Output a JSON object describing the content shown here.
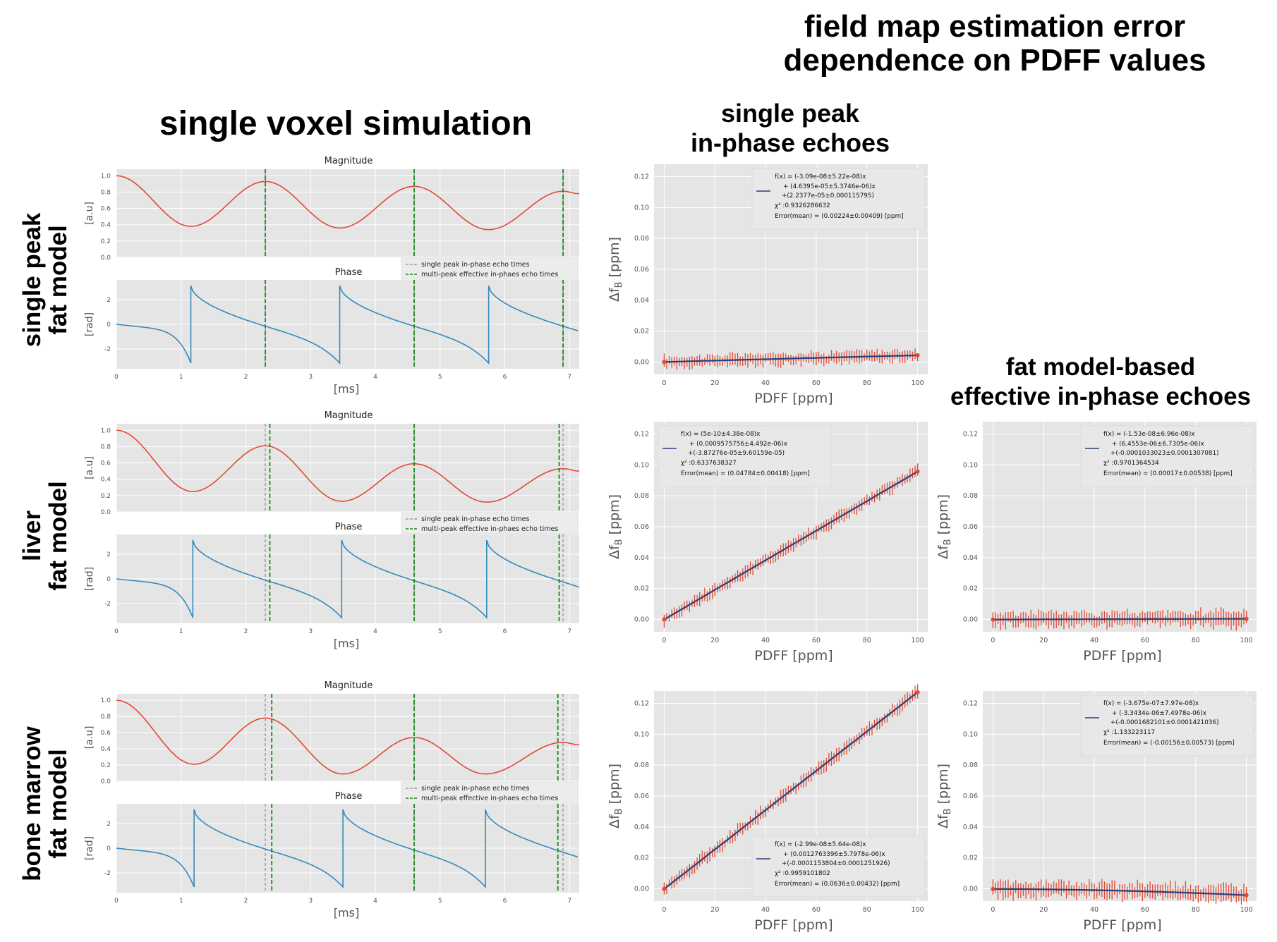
{
  "titles": {
    "main_line1": "field map estimation error",
    "main_line2": "dependence on PDFF values",
    "left": "single voxel simulation",
    "col_single_peak_line1": "single peak",
    "col_single_peak_line2": "in-phase echoes",
    "col_fat_model_line1": "fat model-based",
    "col_fat_model_line2": "effective in-phase echoes"
  },
  "row_labels": [
    {
      "line1": "single peak",
      "line2": "fat model"
    },
    {
      "line1": "liver",
      "line2": "fat model"
    },
    {
      "line1": "bone marrow",
      "line2": "fat model"
    }
  ],
  "colors": {
    "magnitude": "#E24A33",
    "phase": "#348ABD",
    "fit_line": "#2a3f7a",
    "errorbar": "#E24A33",
    "panel_bg": "#E5E5E5",
    "multi_peak_line": "#1a8a1a",
    "single_peak_line": "#888888"
  },
  "chart_data": [
    {
      "type": "line",
      "id": "sim-single-peak-magnitude",
      "title": "Magnitude",
      "xlabel": "",
      "ylabel": "[a.u]",
      "xlim": [
        0,
        7.15
      ],
      "ylim": [
        0,
        1.08
      ],
      "yticks": [
        "0.0",
        "0.2",
        "0.4",
        "0.6",
        "0.8",
        "1.0"
      ],
      "series": [
        {
          "name": "Magnitude",
          "minima": [
            0.38,
            0.36,
            0.34
          ],
          "maxima": [
            0.93,
            0.87,
            0.81
          ]
        }
      ],
      "legend": [
        "single peak in-phase echo times",
        "multi-peak effective in-phaes echo times"
      ],
      "single_peak_echo_times": [
        2.3,
        4.6,
        6.9
      ],
      "multi_peak_echo_times": [
        2.3,
        4.6,
        6.9
      ]
    },
    {
      "type": "line",
      "id": "sim-single-peak-phase",
      "title": "Phase",
      "xlabel": "[ms]",
      "ylabel": "[rad]",
      "xlim": [
        0,
        7.15
      ],
      "ylim": [
        -3.6,
        3.6
      ],
      "xticks": [
        "0",
        "1",
        "2",
        "3",
        "4",
        "5",
        "6",
        "7"
      ],
      "yticks": [
        "-2",
        "0",
        "2"
      ],
      "series": [
        {
          "name": "Phase",
          "wraps_at": [
            1.15,
            3.45,
            5.75
          ]
        }
      ]
    },
    {
      "type": "line",
      "id": "sim-liver-magnitude",
      "title": "Magnitude",
      "xlabel": "",
      "ylabel": "[a.u]",
      "xlim": [
        0,
        7.15
      ],
      "ylim": [
        0,
        1.08
      ],
      "yticks": [
        "0.0",
        "0.2",
        "0.4",
        "0.6",
        "0.8",
        "1.0"
      ],
      "series": [
        {
          "name": "Magnitude",
          "minima": [
            0.25,
            0.13,
            0.12
          ],
          "maxima": [
            0.81,
            0.59,
            0.53
          ]
        }
      ],
      "legend": [
        "single peak in-phase echo times",
        "multi-peak effective in-phaes echo times"
      ],
      "single_peak_echo_times": [
        2.3,
        4.6,
        6.9
      ],
      "multi_peak_echo_times": [
        2.37,
        4.6,
        6.84
      ]
    },
    {
      "type": "line",
      "id": "sim-liver-phase",
      "title": "Phase",
      "xlabel": "[ms]",
      "ylabel": "[rad]",
      "xlim": [
        0,
        7.15
      ],
      "ylim": [
        -3.6,
        3.6
      ],
      "xticks": [
        "0",
        "1",
        "2",
        "3",
        "4",
        "5",
        "6",
        "7"
      ],
      "yticks": [
        "-2",
        "0",
        "2"
      ],
      "series": [
        {
          "name": "Phase",
          "wraps_at": [
            1.18,
            3.48,
            5.72
          ]
        }
      ]
    },
    {
      "type": "line",
      "id": "sim-bone-marrow-magnitude",
      "title": "Magnitude",
      "xlabel": "",
      "ylabel": "[a.u]",
      "xlim": [
        0,
        7.15
      ],
      "ylim": [
        0,
        1.08
      ],
      "yticks": [
        "0.0",
        "0.2",
        "0.4",
        "0.6",
        "0.8",
        "1.0"
      ],
      "series": [
        {
          "name": "Magnitude",
          "minima": [
            0.21,
            0.09,
            0.09
          ],
          "maxima": [
            0.78,
            0.54,
            0.48
          ]
        }
      ],
      "legend": [
        "single peak in-phase echo times",
        "multi-peak effective in-phaes echo times"
      ],
      "single_peak_echo_times": [
        2.3,
        4.6,
        6.9
      ],
      "multi_peak_echo_times": [
        2.4,
        4.6,
        6.82
      ]
    },
    {
      "type": "line",
      "id": "sim-bone-marrow-phase",
      "title": "Phase",
      "xlabel": "[ms]",
      "ylabel": "[rad]",
      "xlim": [
        0,
        7.15
      ],
      "ylim": [
        -3.6,
        3.6
      ],
      "xticks": [
        "0",
        "1",
        "2",
        "3",
        "4",
        "5",
        "6",
        "7"
      ],
      "yticks": [
        "-2",
        "0",
        "2"
      ],
      "series": [
        {
          "name": "Phase",
          "wraps_at": [
            1.2,
            3.5,
            5.7
          ]
        }
      ]
    },
    {
      "type": "scatter",
      "id": "fit-single-peak-in-phase-single-peak-model",
      "xlabel": "PDFF [ppm]",
      "ylabel": "Δf_B [ppm]",
      "xlim": [
        -4,
        104
      ],
      "ylim": [
        -0.008,
        0.128
      ],
      "xticks": [
        "0",
        "20",
        "40",
        "60",
        "80",
        "100"
      ],
      "yticks": [
        "0.00",
        "0.02",
        "0.04",
        "0.06",
        "0.08",
        "0.10",
        "0.12"
      ],
      "fit": {
        "a": -3.09e-08,
        "b": 4.6395e-05,
        "c": 2.2377e-05
      },
      "errorbar_half_width": 0.0041,
      "legend_position": "top-right",
      "legend_text": [
        "f(x) = (-3.09e-08±5.22e-08)x",
        "+ (4.6395e-05±5.3746e-06)x",
        "+(2.2377e-05±0.000115795)",
        ":0.9326286632",
        "Error(mean) = (0.00224±0.00409) [ppm]"
      ]
    },
    {
      "type": "scatter",
      "id": "fit-single-peak-in-phase-liver-model",
      "xlabel": "PDFF [ppm]",
      "ylabel": "Δf_B [ppm]",
      "xlim": [
        -4,
        104
      ],
      "ylim": [
        -0.008,
        0.128
      ],
      "xticks": [
        "0",
        "20",
        "40",
        "60",
        "80",
        "100"
      ],
      "yticks": [
        "0.00",
        "0.02",
        "0.04",
        "0.06",
        "0.08",
        "0.10",
        "0.12"
      ],
      "fit": {
        "a": 5e-10,
        "b": 0.0009575756,
        "c": -3.87276e-05
      },
      "errorbar_half_width": 0.0042,
      "legend_position": "top-left",
      "legend_text": [
        "f(x) = (5e-10±4.38e-08)x",
        "+ (0.0009575756±4.492e-06)x",
        "+(-3.87276e-05±9.60159e-05)",
        ":0.6337638327",
        "Error(mean) = (0.04784±0.00418) [ppm]"
      ]
    },
    {
      "type": "scatter",
      "id": "fit-effective-in-phase-liver-model",
      "xlabel": "PDFF [ppm]",
      "ylabel": "Δf_B [ppm]",
      "xlim": [
        -4,
        104
      ],
      "ylim": [
        -0.008,
        0.128
      ],
      "xticks": [
        "0",
        "20",
        "40",
        "60",
        "80",
        "100"
      ],
      "yticks": [
        "0.00",
        "0.02",
        "0.04",
        "0.06",
        "0.08",
        "0.10",
        "0.12"
      ],
      "fit": {
        "a": -1.53e-08,
        "b": 6.4553e-06,
        "c": -0.0001033023
      },
      "errorbar_half_width": 0.0054,
      "legend_position": "top-right",
      "legend_text": [
        "f(x) = (-1.53e-08±6.96e-08)x",
        "+ (6.4553e-06±6.7305e-06)x",
        "+(-0.0001033023±0.0001307081)",
        ":0.9701364534",
        "Error(mean) = (0.00017±0.00538) [ppm]"
      ]
    },
    {
      "type": "scatter",
      "id": "fit-single-peak-in-phase-bone-marrow-model",
      "xlabel": "PDFF [ppm]",
      "ylabel": "Δf_B [ppm]",
      "xlim": [
        -4,
        104
      ],
      "ylim": [
        -0.008,
        0.128
      ],
      "xticks": [
        "0",
        "20",
        "40",
        "60",
        "80",
        "100"
      ],
      "yticks": [
        "0.00",
        "0.02",
        "0.04",
        "0.06",
        "0.08",
        "0.10",
        "0.12"
      ],
      "fit": {
        "a": -2.99e-08,
        "b": 0.0012763396,
        "c": -0.0001153804
      },
      "errorbar_half_width": 0.0043,
      "legend_position": "bottom-right",
      "legend_text": [
        "f(x) = (-2.99e-08±5.64e-08)x",
        "+ (0.0012763396±5.7978e-06)x",
        "+(-0.0001153804±0.0001251926)",
        ":0.9959101802",
        "Error(mean) = (0.0636±0.00432) [ppm]"
      ]
    },
    {
      "type": "scatter",
      "id": "fit-effective-in-phase-bone-marrow-model",
      "xlabel": "PDFF [ppm]",
      "ylabel": "Δf_B [ppm]",
      "xlim": [
        -4,
        104
      ],
      "ylim": [
        -0.008,
        0.128
      ],
      "xticks": [
        "0",
        "20",
        "40",
        "60",
        "80",
        "100"
      ],
      "yticks": [
        "0.00",
        "0.02",
        "0.04",
        "0.06",
        "0.08",
        "0.10",
        "0.12"
      ],
      "fit": {
        "a": -3.675e-07,
        "b": -3.3434e-06,
        "c": -0.0001682101
      },
      "errorbar_half_width": 0.0057,
      "legend_position": "top-right",
      "legend_text": [
        "f(x) = (-3.675e-07±7.97e-08)x",
        "+ (-3.3434e-06±7.4978e-06)x",
        "+(-0.0001682101±0.0001421036)",
        ":1.133223117",
        "Error(mean) = (-0.00156±0.00573) [ppm]"
      ]
    }
  ]
}
